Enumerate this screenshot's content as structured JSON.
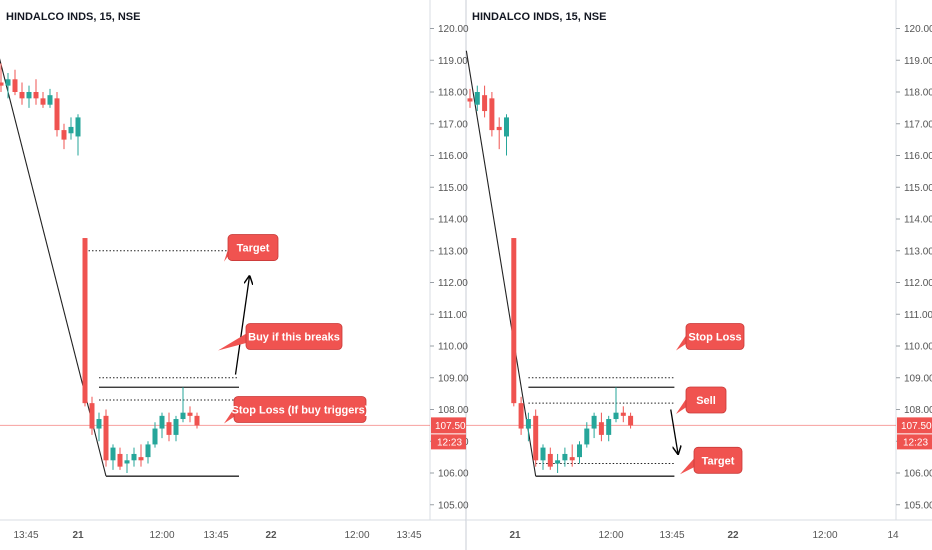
{
  "charts": [
    {
      "title": "HINDALCO INDS, 15, NSE",
      "price_ticks": [
        "120.00",
        "119.00",
        "118.00",
        "117.00",
        "116.00",
        "115.00",
        "114.00",
        "113.00",
        "112.00",
        "111.00",
        "110.00",
        "109.00",
        "108.00",
        "107.00",
        "106.00",
        "105.00"
      ],
      "time_ticks": [
        "13:45",
        "21",
        "12:00",
        "13:45",
        "22",
        "12:00",
        "13:45"
      ],
      "last_price": "107.50",
      "countdown": "12:23",
      "callouts": [
        "Target",
        "Buy if this breaks",
        "Stop Loss (If buy triggers)"
      ]
    },
    {
      "title": "HINDALCO INDS, 15, NSE",
      "price_ticks": [
        "120.00",
        "119.00",
        "118.00",
        "117.00",
        "116.00",
        "115.00",
        "114.00",
        "113.00",
        "112.00",
        "111.00",
        "110.00",
        "109.00",
        "108.00",
        "107.00",
        "106.00",
        "105.00"
      ],
      "time_ticks": [
        "21",
        "12:00",
        "13:45",
        "22",
        "12:00",
        "14"
      ],
      "last_price": "107.50",
      "countdown": "12:23",
      "callouts": [
        "Stop Loss",
        "Sell",
        "Target"
      ]
    }
  ],
  "colors": {
    "up": "#26a69a",
    "down": "#ef5350",
    "callout": "#f05350",
    "price_line": "#ef5350",
    "text": "#555555"
  },
  "chart_data": [
    {
      "type": "candlestick",
      "title": "HINDALCO INDS, 15, NSE",
      "ylim": [
        104.6,
        120.8
      ],
      "candles": [
        {
          "o": 118.3,
          "h": 118.9,
          "l": 118.0,
          "c": 118.2
        },
        {
          "o": 118.2,
          "h": 118.6,
          "l": 117.8,
          "c": 118.4
        },
        {
          "o": 118.4,
          "h": 118.7,
          "l": 117.9,
          "c": 118.0
        },
        {
          "o": 118.0,
          "h": 118.3,
          "l": 117.6,
          "c": 117.8
        },
        {
          "o": 117.8,
          "h": 118.2,
          "l": 117.5,
          "c": 118.0
        },
        {
          "o": 118.0,
          "h": 118.4,
          "l": 117.6,
          "c": 117.8
        },
        {
          "o": 117.8,
          "h": 118.0,
          "l": 117.5,
          "c": 117.6
        },
        {
          "o": 117.6,
          "h": 118.1,
          "l": 117.5,
          "c": 117.9
        },
        {
          "o": 117.8,
          "h": 118.0,
          "l": 116.6,
          "c": 116.8
        },
        {
          "o": 116.8,
          "h": 117.0,
          "l": 116.2,
          "c": 116.5
        },
        {
          "o": 116.7,
          "h": 117.2,
          "l": 116.5,
          "c": 116.9
        },
        {
          "o": 116.6,
          "h": 117.3,
          "l": 116.0,
          "c": 117.2
        },
        {
          "o": 113.4,
          "h": 113.4,
          "l": 108.1,
          "c": 108.2
        },
        {
          "o": 108.2,
          "h": 108.4,
          "l": 107.2,
          "c": 107.4
        },
        {
          "o": 107.4,
          "h": 107.9,
          "l": 107.0,
          "c": 107.7
        },
        {
          "o": 107.8,
          "h": 108.0,
          "l": 106.2,
          "c": 106.4
        },
        {
          "o": 106.4,
          "h": 106.9,
          "l": 106.1,
          "c": 106.8
        },
        {
          "o": 106.6,
          "h": 106.8,
          "l": 106.1,
          "c": 106.2
        },
        {
          "o": 106.3,
          "h": 106.6,
          "l": 106.0,
          "c": 106.4
        },
        {
          "o": 106.4,
          "h": 106.8,
          "l": 106.2,
          "c": 106.6
        },
        {
          "o": 106.5,
          "h": 106.9,
          "l": 106.2,
          "c": 106.4
        },
        {
          "o": 106.5,
          "h": 107.0,
          "l": 106.3,
          "c": 106.9
        },
        {
          "o": 106.9,
          "h": 107.6,
          "l": 106.8,
          "c": 107.4
        },
        {
          "o": 107.4,
          "h": 107.9,
          "l": 107.1,
          "c": 107.8
        },
        {
          "o": 107.6,
          "h": 107.9,
          "l": 107.0,
          "c": 107.2
        },
        {
          "o": 107.2,
          "h": 107.8,
          "l": 107.0,
          "c": 107.7
        },
        {
          "o": 107.7,
          "h": 108.7,
          "l": 107.6,
          "c": 107.9
        },
        {
          "o": 107.9,
          "h": 108.1,
          "l": 107.6,
          "c": 107.8
        },
        {
          "o": 107.8,
          "h": 107.9,
          "l": 107.4,
          "c": 107.5
        }
      ],
      "drawings": [
        {
          "kind": "trend_line",
          "from": [
            -0.5,
            119.3
          ],
          "to": [
            15,
            105.9
          ]
        },
        {
          "kind": "dotted_hline",
          "y": 113.0,
          "from": 12,
          "to": 34
        },
        {
          "kind": "dotted_hline",
          "y": 109.0,
          "from": 14,
          "to": 34
        },
        {
          "kind": "solid_hline",
          "y": 108.7,
          "from": 14,
          "to": 34
        },
        {
          "kind": "dotted_hline",
          "y": 108.3,
          "from": 14,
          "to": 34
        },
        {
          "kind": "solid_hline",
          "y": 105.9,
          "from": 15,
          "to": 34
        },
        {
          "kind": "arrow",
          "from": [
            33.5,
            109.1
          ],
          "to": [
            35.5,
            112.2
          ]
        }
      ],
      "callout_prices": [
        113.1,
        110.3,
        108.0
      ]
    },
    {
      "type": "candlestick",
      "title": "HINDALCO INDS, 15, NSE",
      "ylim": [
        104.6,
        120.8
      ],
      "candles": [
        {
          "o": 117.8,
          "h": 118.1,
          "l": 117.5,
          "c": 117.7
        },
        {
          "o": 117.6,
          "h": 118.2,
          "l": 117.4,
          "c": 118.0
        },
        {
          "o": 117.9,
          "h": 118.2,
          "l": 117.2,
          "c": 117.4
        },
        {
          "o": 117.8,
          "h": 118.0,
          "l": 116.6,
          "c": 116.8
        },
        {
          "o": 116.9,
          "h": 117.2,
          "l": 116.2,
          "c": 116.8
        },
        {
          "o": 116.6,
          "h": 117.3,
          "l": 116.0,
          "c": 117.2
        },
        {
          "o": 113.4,
          "h": 113.4,
          "l": 108.1,
          "c": 108.2
        },
        {
          "o": 108.2,
          "h": 108.4,
          "l": 107.2,
          "c": 107.4
        },
        {
          "o": 107.4,
          "h": 107.9,
          "l": 107.0,
          "c": 107.7
        },
        {
          "o": 107.8,
          "h": 108.0,
          "l": 106.2,
          "c": 106.4
        },
        {
          "o": 106.4,
          "h": 106.9,
          "l": 106.1,
          "c": 106.8
        },
        {
          "o": 106.6,
          "h": 106.8,
          "l": 106.1,
          "c": 106.2
        },
        {
          "o": 106.3,
          "h": 106.6,
          "l": 106.0,
          "c": 106.4
        },
        {
          "o": 106.4,
          "h": 106.8,
          "l": 106.2,
          "c": 106.6
        },
        {
          "o": 106.5,
          "h": 106.9,
          "l": 106.2,
          "c": 106.4
        },
        {
          "o": 106.5,
          "h": 107.0,
          "l": 106.3,
          "c": 106.9
        },
        {
          "o": 106.9,
          "h": 107.6,
          "l": 106.8,
          "c": 107.4
        },
        {
          "o": 107.4,
          "h": 107.9,
          "l": 107.1,
          "c": 107.8
        },
        {
          "o": 107.6,
          "h": 107.9,
          "l": 107.0,
          "c": 107.2
        },
        {
          "o": 107.2,
          "h": 107.8,
          "l": 107.0,
          "c": 107.7
        },
        {
          "o": 107.7,
          "h": 108.7,
          "l": 107.6,
          "c": 107.9
        },
        {
          "o": 107.9,
          "h": 108.1,
          "l": 107.6,
          "c": 107.8
        },
        {
          "o": 107.8,
          "h": 107.9,
          "l": 107.4,
          "c": 107.5
        }
      ],
      "drawings": [
        {
          "kind": "trend_line",
          "from": [
            -0.5,
            119.3
          ],
          "to": [
            9,
            105.9
          ]
        },
        {
          "kind": "dotted_hline",
          "y": 109.0,
          "from": 8,
          "to": 28
        },
        {
          "kind": "solid_hline",
          "y": 108.7,
          "from": 8,
          "to": 28
        },
        {
          "kind": "dotted_hline",
          "y": 108.2,
          "from": 8,
          "to": 28
        },
        {
          "kind": "dotted_hline",
          "y": 106.3,
          "from": 9,
          "to": 28
        },
        {
          "kind": "solid_hline",
          "y": 105.9,
          "from": 9,
          "to": 28
        },
        {
          "kind": "arrow",
          "from": [
            27.5,
            108.0
          ],
          "to": [
            28.5,
            106.6
          ]
        }
      ],
      "callout_prices": [
        110.3,
        108.3,
        106.4
      ]
    }
  ]
}
